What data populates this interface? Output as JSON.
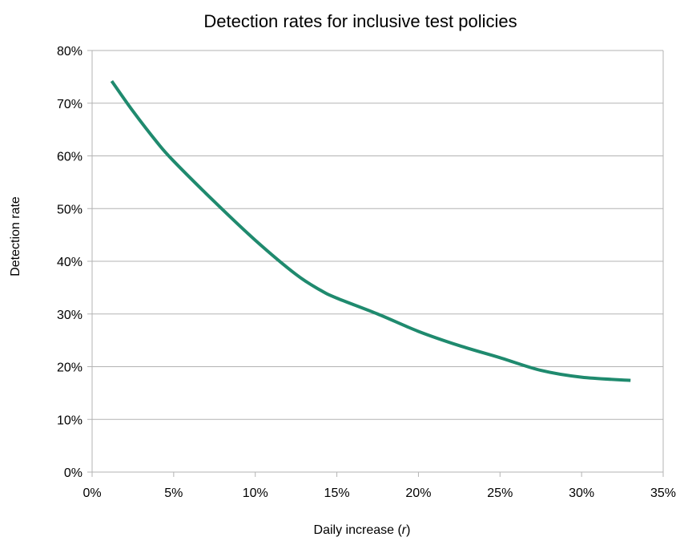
{
  "chart_data": {
    "type": "line",
    "title": "Detection rates for inclusive test policies",
    "xlabel_prefix": "Daily increase (",
    "xlabel_var": "r",
    "xlabel_suffix": ")",
    "ylabel": "Detection rate",
    "xlim": [
      0,
      35
    ],
    "ylim": [
      0,
      80
    ],
    "x_ticks": [
      0,
      5,
      10,
      15,
      20,
      25,
      30,
      35
    ],
    "x_tick_labels": [
      "0%",
      "5%",
      "10%",
      "15%",
      "20%",
      "25%",
      "30%",
      "35%"
    ],
    "y_ticks": [
      0,
      10,
      20,
      30,
      40,
      50,
      60,
      70,
      80
    ],
    "y_tick_labels": [
      "0%",
      "10%",
      "20%",
      "30%",
      "40%",
      "50%",
      "60%",
      "70%",
      "80%"
    ],
    "grid": true,
    "series": [
      {
        "color": "#1f8a6e",
        "points": [
          [
            1.2,
            74.2
          ],
          [
            2.5,
            68.5
          ],
          [
            4.0,
            62.5
          ],
          [
            5.0,
            59.0
          ],
          [
            7.5,
            51.3
          ],
          [
            10.0,
            44.0
          ],
          [
            12.5,
            37.5
          ],
          [
            14.0,
            34.5
          ],
          [
            15.0,
            33.0
          ],
          [
            17.5,
            30.0
          ],
          [
            20.0,
            26.7
          ],
          [
            22.5,
            24.0
          ],
          [
            25.0,
            21.7
          ],
          [
            27.5,
            19.3
          ],
          [
            30.0,
            18.0
          ],
          [
            33.0,
            17.4
          ]
        ]
      }
    ]
  }
}
